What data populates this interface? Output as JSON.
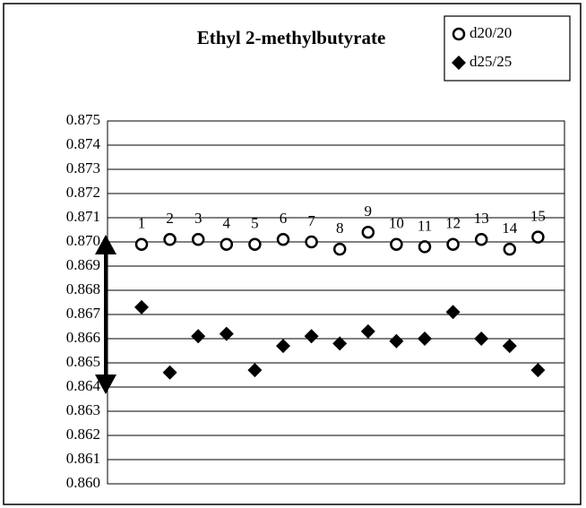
{
  "chart_data": {
    "type": "scatter",
    "title": "Ethyl 2-methylbutyrate",
    "categories": [
      "1",
      "2",
      "3",
      "4",
      "5",
      "6",
      "7",
      "8",
      "9",
      "10",
      "11",
      "12",
      "13",
      "14",
      "15"
    ],
    "series": [
      {
        "name": "d20/20",
        "color": "#000000",
        "marker": "circle",
        "values": [
          0.8699,
          0.8701,
          0.8701,
          0.8699,
          0.8699,
          0.8701,
          0.87,
          0.8697,
          0.8704,
          0.8699,
          0.8698,
          0.8699,
          0.8701,
          0.8697,
          0.8702
        ]
      },
      {
        "name": "d25/25",
        "color": "#000000",
        "marker": "diamond",
        "values": [
          0.8673,
          0.8646,
          0.8661,
          0.8662,
          0.8647,
          0.8657,
          0.8661,
          0.8658,
          0.8663,
          0.8659,
          0.866,
          0.8671,
          0.866,
          0.8657,
          0.8647
        ]
      }
    ],
    "ylim": [
      0.86,
      0.875
    ],
    "yticks": [
      {
        "value": 0.875,
        "label": "0.875"
      },
      {
        "value": 0.874,
        "label": "0.874"
      },
      {
        "value": 0.873,
        "label": "0.873"
      },
      {
        "value": 0.872,
        "label": "0.872"
      },
      {
        "value": 0.871,
        "label": "0.871"
      },
      {
        "value": 0.87,
        "label": "0.870"
      },
      {
        "value": 0.869,
        "label": "0.869"
      },
      {
        "value": 0.868,
        "label": "0.868"
      },
      {
        "value": 0.867,
        "label": "0.867"
      },
      {
        "value": 0.866,
        "label": "0.866"
      },
      {
        "value": 0.865,
        "label": "0.865"
      },
      {
        "value": 0.864,
        "label": "0.864"
      },
      {
        "value": 0.863,
        "label": "0.863"
      },
      {
        "value": 0.862,
        "label": "0.862"
      },
      {
        "value": 0.861,
        "label": "0.861"
      },
      {
        "value": 0.86,
        "label": "0.860"
      }
    ],
    "grid": true,
    "legend": "top-right"
  }
}
